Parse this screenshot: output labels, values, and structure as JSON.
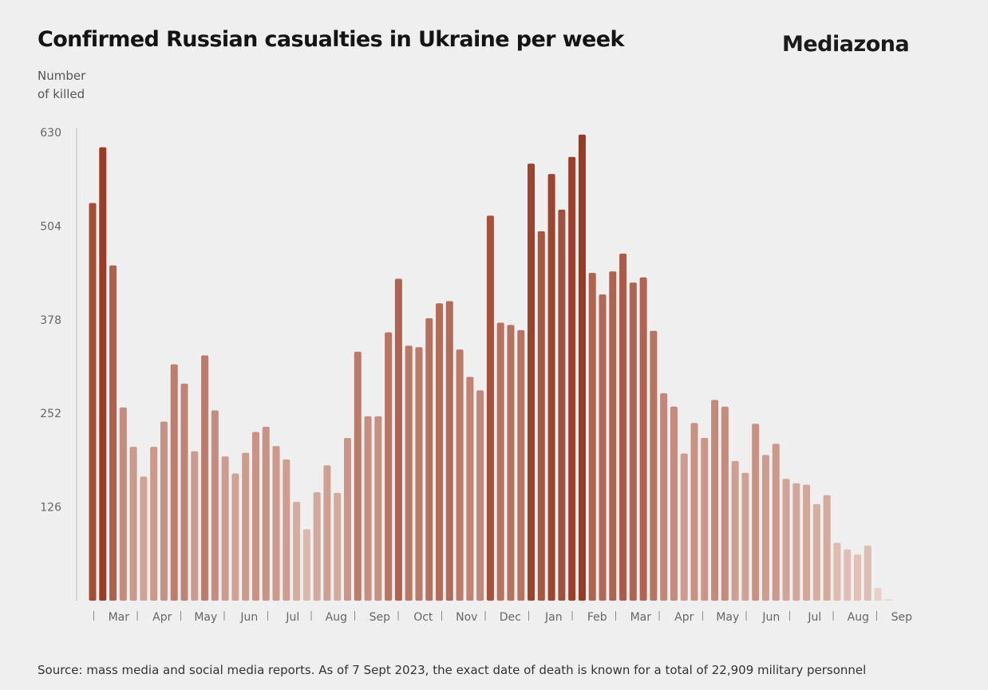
{
  "title": "Confirmed Russian casualties in Ukraine per week",
  "brand": "Mediazona",
  "ylabel_line1": "Number",
  "ylabel_line2": "of killed",
  "source": "Source: mass media and social media reports. As of 7 Sept 2023, the exact date of death is known for a total of 22,909 military personnel",
  "colors": {
    "background": "#efefef",
    "bar_light": "#ecd6cf",
    "bar_dark": "#983923",
    "axis": "#bdbdbd",
    "tick_text": "#666666"
  },
  "chart_data": {
    "type": "bar",
    "title": "Confirmed Russian casualties in Ukraine per week",
    "xlabel": "",
    "ylabel": "Number of killed",
    "ylim": [
      0,
      630
    ],
    "yticks": [
      126,
      252,
      378,
      504,
      630
    ],
    "month_labels": [
      "Mar",
      "Apr",
      "May",
      "Jun",
      "Jul",
      "Aug",
      "Sep",
      "Oct",
      "Nov",
      "Dec",
      "Jan",
      "Feb",
      "Mar",
      "Apr",
      "May",
      "Jun",
      "Jul",
      "Aug",
      "Sep"
    ],
    "values": [
      535,
      610,
      451,
      260,
      207,
      167,
      207,
      241,
      318,
      292,
      201,
      330,
      256,
      194,
      171,
      199,
      227,
      234,
      208,
      190,
      133,
      96,
      146,
      182,
      145,
      219,
      335,
      248,
      248,
      361,
      433,
      343,
      341,
      380,
      400,
      403,
      338,
      301,
      283,
      518,
      374,
      371,
      364,
      588,
      497,
      574,
      526,
      597,
      627,
      441,
      412,
      443,
      467,
      428,
      435,
      363,
      279,
      261,
      198,
      239,
      219,
      270,
      261,
      188,
      172,
      238,
      196,
      211,
      164,
      158,
      156,
      130,
      142,
      78,
      69,
      62,
      74,
      17,
      2
    ]
  }
}
